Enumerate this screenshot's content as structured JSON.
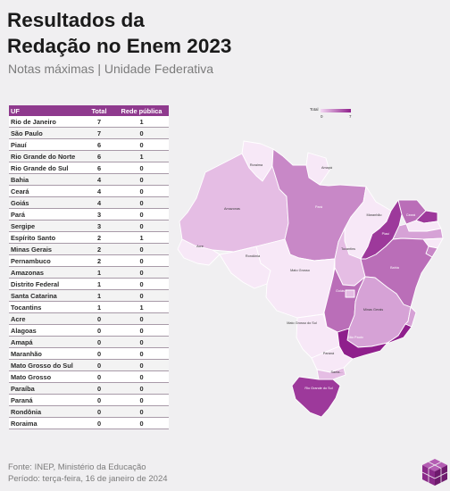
{
  "title_line1": "Resultados da",
  "title_line2": "Redação no Enem 2023",
  "subtitle": "Notas máximas | Unidade Federativa",
  "table": {
    "headers": [
      "UF",
      "Total",
      "Rede pública"
    ],
    "rows": [
      [
        "Rio de Janeiro",
        "7",
        "1"
      ],
      [
        "São Paulo",
        "7",
        "0"
      ],
      [
        "Piauí",
        "6",
        "0"
      ],
      [
        "Rio Grande do Norte",
        "6",
        "1"
      ],
      [
        "Rio Grande do Sul",
        "6",
        "0"
      ],
      [
        "Bahia",
        "4",
        "0"
      ],
      [
        "Ceará",
        "4",
        "0"
      ],
      [
        "Goiás",
        "4",
        "0"
      ],
      [
        "Pará",
        "3",
        "0"
      ],
      [
        "Sergipe",
        "3",
        "0"
      ],
      [
        "Espírito Santo",
        "2",
        "1"
      ],
      [
        "Minas Gerais",
        "2",
        "0"
      ],
      [
        "Pernambuco",
        "2",
        "0"
      ],
      [
        "Amazonas",
        "1",
        "0"
      ],
      [
        "Distrito Federal",
        "1",
        "0"
      ],
      [
        "Santa Catarina",
        "1",
        "0"
      ],
      [
        "Tocantins",
        "1",
        "1"
      ],
      [
        "Acre",
        "0",
        "0"
      ],
      [
        "Alagoas",
        "0",
        "0"
      ],
      [
        "Amapá",
        "0",
        "0"
      ],
      [
        "Maranhão",
        "0",
        "0"
      ],
      [
        "Mato Grosso do Sul",
        "0",
        "0"
      ],
      [
        "Mato Grosso",
        "0",
        "0"
      ],
      [
        "Paraíba",
        "0",
        "0"
      ],
      [
        "Paraná",
        "0",
        "0"
      ],
      [
        "Rondônia",
        "0",
        "0"
      ],
      [
        "Roraima",
        "0",
        "0"
      ]
    ]
  },
  "legend": {
    "label": "Total",
    "min": "0",
    "max": "7"
  },
  "colors": {
    "low": "#f3d7f3",
    "high": "#8f1f8c",
    "header": "#8f3a8e",
    "empty": "#f7e8f7"
  },
  "chart_data": {
    "type": "table",
    "columns": [
      "UF",
      "Total",
      "Rede pública"
    ],
    "categories": [
      "Rio de Janeiro",
      "São Paulo",
      "Piauí",
      "Rio Grande do Norte",
      "Rio Grande do Sul",
      "Bahia",
      "Ceará",
      "Goiás",
      "Pará",
      "Sergipe",
      "Espírito Santo",
      "Minas Gerais",
      "Pernambuco",
      "Amazonas",
      "Distrito Federal",
      "Santa Catarina",
      "Tocantins",
      "Acre",
      "Alagoas",
      "Amapá",
      "Maranhão",
      "Mato Grosso do Sul",
      "Mato Grosso",
      "Paraíba",
      "Paraná",
      "Rondônia",
      "Roraima"
    ],
    "series": [
      {
        "name": "Total",
        "values": [
          7,
          7,
          6,
          6,
          6,
          4,
          4,
          4,
          3,
          3,
          2,
          2,
          2,
          1,
          1,
          1,
          1,
          0,
          0,
          0,
          0,
          0,
          0,
          0,
          0,
          0,
          0
        ]
      },
      {
        "name": "Rede pública",
        "values": [
          1,
          0,
          0,
          1,
          0,
          0,
          0,
          0,
          0,
          0,
          1,
          0,
          0,
          0,
          0,
          0,
          1,
          0,
          0,
          0,
          0,
          0,
          0,
          0,
          0,
          0,
          0
        ]
      }
    ],
    "map_labels": [
      "Roraima",
      "Amapá",
      "Amazonas",
      "Pará",
      "Maranhão",
      "Ceará",
      "Piauí",
      "Acre",
      "Rondônia",
      "Tocantins",
      "Mato Grosso",
      "Bahia",
      "Goiás",
      "Minas Gerais",
      "Mato Grosso do Sul",
      "São Paulo",
      "Paraná",
      "Santa...",
      "Rio Grande do Sul"
    ]
  },
  "footer": {
    "source": "Fonte: INEP, Ministério da Educação",
    "period": "Período: terça-feira, 16 de janeiro de 2024"
  }
}
